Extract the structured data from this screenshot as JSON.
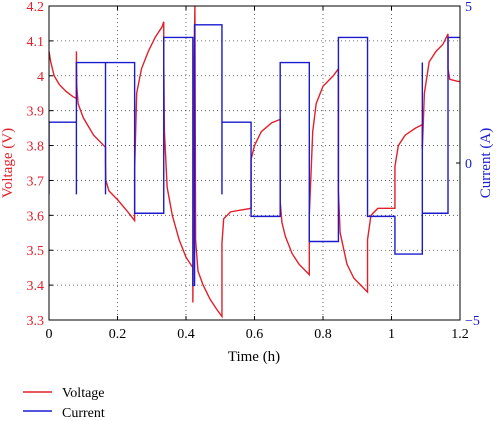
{
  "chart_data": {
    "type": "line",
    "xlabel": "Time (h)",
    "ylabel_left": "Voltage (V)",
    "ylabel_right": "Current (A)",
    "xlim": [
      0,
      1.2
    ],
    "ylim_left": [
      3.3,
      4.2
    ],
    "ylim_right": [
      -5,
      5
    ],
    "x_ticks": [
      "0",
      "0.2",
      "0.4",
      "0.6",
      "0.8",
      "1",
      "1.2"
    ],
    "y_left_ticks": [
      "3.3",
      "3.4",
      "3.5",
      "3.6",
      "3.7",
      "3.8",
      "3.9",
      "4",
      "4.1",
      "4.2"
    ],
    "y_right_ticks": [
      "−5",
      "0",
      "5"
    ],
    "grid": true,
    "legend_position": "bottom-left",
    "colors": {
      "voltage": "#e0202a",
      "current": "#1a1acf",
      "left_axis": "#e0202a",
      "right_axis": "#1a1acf"
    },
    "series": [
      {
        "name": "Voltage",
        "axis": "left",
        "points": [
          [
            0.0,
            4.07
          ],
          [
            0.005,
            4.04
          ],
          [
            0.015,
            4.0
          ],
          [
            0.03,
            3.975
          ],
          [
            0.05,
            3.955
          ],
          [
            0.07,
            3.94
          ],
          [
            0.08,
            3.935
          ],
          [
            0.08,
            4.07
          ],
          [
            0.081,
            3.97
          ],
          [
            0.085,
            3.92
          ],
          [
            0.1,
            3.88
          ],
          [
            0.13,
            3.83
          ],
          [
            0.16,
            3.8
          ],
          [
            0.165,
            3.795
          ],
          [
            0.165,
            3.75
          ],
          [
            0.166,
            3.7
          ],
          [
            0.175,
            3.67
          ],
          [
            0.2,
            3.645
          ],
          [
            0.23,
            3.61
          ],
          [
            0.25,
            3.585
          ],
          [
            0.25,
            3.73
          ],
          [
            0.256,
            3.95
          ],
          [
            0.27,
            4.02
          ],
          [
            0.29,
            4.07
          ],
          [
            0.31,
            4.11
          ],
          [
            0.33,
            4.14
          ],
          [
            0.335,
            4.155
          ],
          [
            0.335,
            4.05
          ],
          [
            0.337,
            3.84
          ],
          [
            0.345,
            3.68
          ],
          [
            0.36,
            3.6
          ],
          [
            0.38,
            3.53
          ],
          [
            0.4,
            3.48
          ],
          [
            0.42,
            3.45
          ],
          [
            0.42,
            3.35
          ],
          [
            0.422,
            3.6
          ],
          [
            0.424,
            4.05
          ],
          [
            0.426,
            4.2
          ],
          [
            0.428,
            3.53
          ],
          [
            0.435,
            3.44
          ],
          [
            0.45,
            3.4
          ],
          [
            0.47,
            3.36
          ],
          [
            0.49,
            3.33
          ],
          [
            0.505,
            3.31
          ],
          [
            0.505,
            3.52
          ],
          [
            0.51,
            3.59
          ],
          [
            0.53,
            3.61
          ],
          [
            0.56,
            3.615
          ],
          [
            0.59,
            3.62
          ],
          [
            0.59,
            3.76
          ],
          [
            0.6,
            3.8
          ],
          [
            0.62,
            3.84
          ],
          [
            0.65,
            3.865
          ],
          [
            0.675,
            3.875
          ],
          [
            0.675,
            3.64
          ],
          [
            0.68,
            3.58
          ],
          [
            0.69,
            3.54
          ],
          [
            0.71,
            3.49
          ],
          [
            0.73,
            3.46
          ],
          [
            0.76,
            3.43
          ],
          [
            0.76,
            3.6
          ],
          [
            0.77,
            3.84
          ],
          [
            0.78,
            3.92
          ],
          [
            0.8,
            3.97
          ],
          [
            0.83,
            4.0
          ],
          [
            0.845,
            4.02
          ],
          [
            0.845,
            3.67
          ],
          [
            0.85,
            3.55
          ],
          [
            0.87,
            3.46
          ],
          [
            0.89,
            3.42
          ],
          [
            0.91,
            3.4
          ],
          [
            0.93,
            3.38
          ],
          [
            0.93,
            3.53
          ],
          [
            0.94,
            3.6
          ],
          [
            0.96,
            3.62
          ],
          [
            0.99,
            3.62
          ],
          [
            1.01,
            3.62
          ],
          [
            1.01,
            3.74
          ],
          [
            1.02,
            3.8
          ],
          [
            1.04,
            3.83
          ],
          [
            1.07,
            3.85
          ],
          [
            1.09,
            3.86
          ],
          [
            1.09,
            3.79
          ],
          [
            1.096,
            3.95
          ],
          [
            1.11,
            4.04
          ],
          [
            1.13,
            4.07
          ],
          [
            1.15,
            4.09
          ],
          [
            1.165,
            4.12
          ],
          [
            1.165,
            4.02
          ],
          [
            1.17,
            3.99
          ],
          [
            1.19,
            3.985
          ],
          [
            1.215,
            3.98
          ]
        ]
      },
      {
        "name": "Current",
        "axis": "right",
        "points": [
          [
            0.0,
            -1.0
          ],
          [
            0.0,
            1.3
          ],
          [
            0.08,
            1.3
          ],
          [
            0.08,
            -1.0
          ],
          [
            0.08,
            3.2
          ],
          [
            0.165,
            3.2
          ],
          [
            0.165,
            -1.0
          ],
          [
            0.165,
            3.2
          ],
          [
            0.25,
            3.2
          ],
          [
            0.25,
            -1.6
          ],
          [
            0.335,
            -1.6
          ],
          [
            0.335,
            4.0
          ],
          [
            0.42,
            4.0
          ],
          [
            0.42,
            -3.9
          ],
          [
            0.425,
            -3.9
          ],
          [
            0.425,
            4.4
          ],
          [
            0.505,
            4.4
          ],
          [
            0.505,
            -1.0
          ],
          [
            0.505,
            1.3
          ],
          [
            0.59,
            1.3
          ],
          [
            0.59,
            -1.7
          ],
          [
            0.675,
            -1.7
          ],
          [
            0.675,
            3.2
          ],
          [
            0.76,
            3.2
          ],
          [
            0.76,
            -2.5
          ],
          [
            0.845,
            -2.5
          ],
          [
            0.845,
            4.0
          ],
          [
            0.93,
            4.0
          ],
          [
            0.93,
            -1.7
          ],
          [
            1.01,
            -1.7
          ],
          [
            1.01,
            -2.9
          ],
          [
            1.09,
            -2.9
          ],
          [
            1.09,
            3.2
          ],
          [
            1.09,
            -1.6
          ],
          [
            1.165,
            -1.6
          ],
          [
            1.165,
            4.0
          ],
          [
            1.2,
            4.0
          ]
        ]
      }
    ]
  }
}
